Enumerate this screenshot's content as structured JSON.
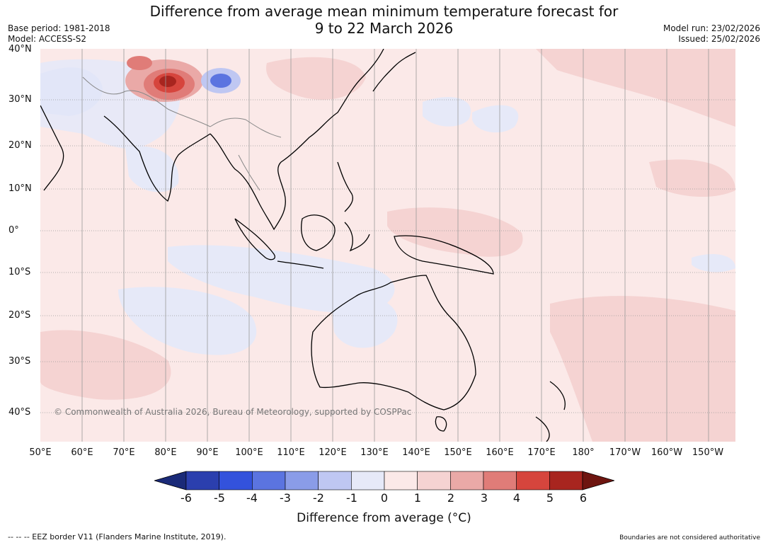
{
  "header": {
    "title_line1": "Difference from average mean minimum temperature forecast for",
    "title_line2": "9 to 22 March 2026",
    "base_period": "Base period: 1981-2018",
    "model": "Model: ACCESS-S2",
    "model_run": "Model run: 23/02/2026",
    "issued": "Issued: 25/02/2026"
  },
  "map": {
    "copyright": "© Commonwealth of Australia 2026, Bureau of Meteorology, supported by COSPPac",
    "lat_labels": [
      "40°N",
      "30°N",
      "20°N",
      "10°N",
      "0°",
      "10°S",
      "20°S",
      "30°S",
      "40°S"
    ],
    "lon_labels": [
      "50°E",
      "60°E",
      "70°E",
      "80°E",
      "90°E",
      "100°E",
      "110°E",
      "120°E",
      "130°E",
      "140°E",
      "150°E",
      "160°E",
      "170°E",
      "180°",
      "170°W",
      "160°W",
      "150°W"
    ]
  },
  "colorbar": {
    "ticks": [
      "-6",
      "-5",
      "-4",
      "-3",
      "-2",
      "-1",
      "0",
      "1",
      "2",
      "3",
      "4",
      "5",
      "6"
    ],
    "colors": [
      "#1a2a78",
      "#2b3fae",
      "#3352dc",
      "#5b74e0",
      "#8a9ce8",
      "#bfc7f2",
      "#e6e9f8",
      "#fbe9e8",
      "#f5d3d2",
      "#eaa9a7",
      "#e07c78",
      "#d6453d",
      "#a8251f",
      "#6e1510"
    ],
    "label": "Difference from average (°C)"
  },
  "footer": {
    "eez": "--  --  -- EEZ border V11 (Flanders Marine Institute, 2019).",
    "disclaimer": "Boundaries are not considered authoritative"
  },
  "colors": {
    "ocean": "#fbe9e8",
    "warm1": "#f5d3d2",
    "cool1": "#e6e9f8",
    "grid": "#999999",
    "land_outline": "#000000"
  }
}
